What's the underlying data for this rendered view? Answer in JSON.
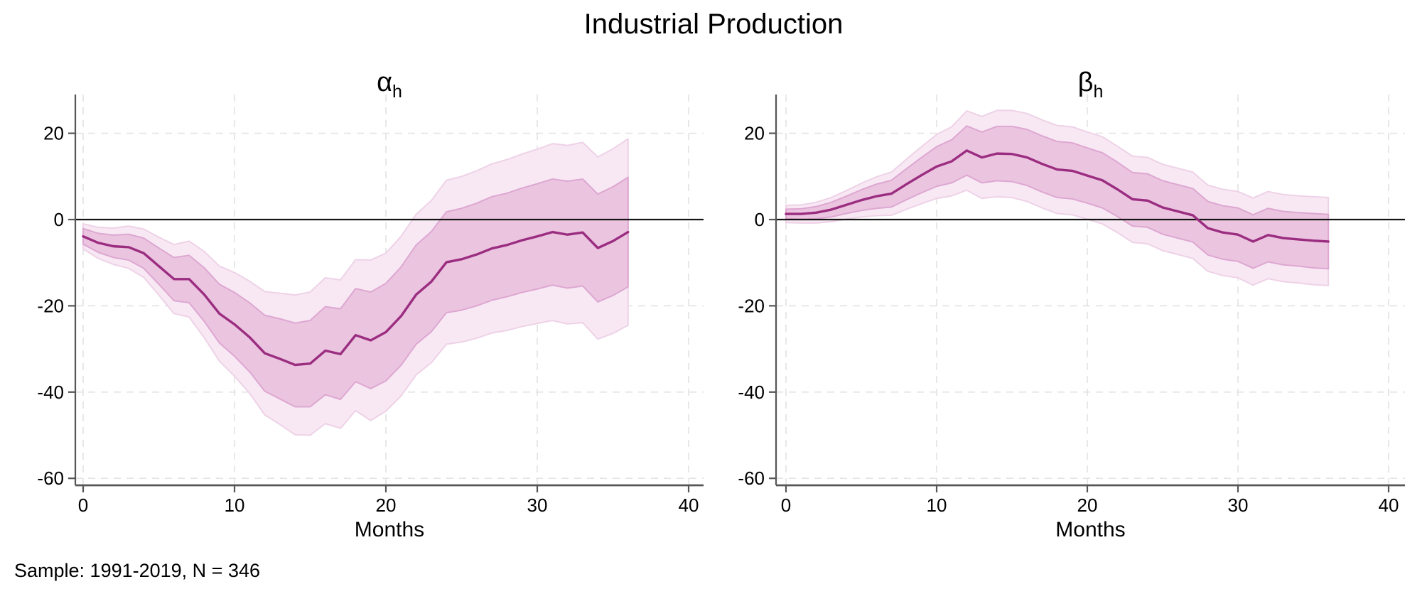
{
  "title": "Industrial Production",
  "note": "Sample: 1991-2019, N = 346",
  "chart_data": {
    "type": "area",
    "title": "Industrial Production",
    "xlabel": "Months",
    "x_ticks": [
      0,
      10,
      20,
      30,
      40
    ],
    "y_ticks": [
      20,
      0,
      -20,
      -40,
      -60
    ],
    "xlim": [
      0,
      40
    ],
    "ylim": [
      -62,
      29
    ],
    "zero_reference_line": 0,
    "grid": "dashed light-gray at all x and y ticks",
    "band_meaning": "inner and outer confidence bands around point estimate",
    "colors": {
      "mean_line": "#9b2d80",
      "inner_fill": "#ebc4e0",
      "inner_edge": "#dda7d1",
      "outer_fill": "#f8e8f4",
      "outer_edge": "#eed2e7",
      "grid": "#e3e3e3",
      "axis": "#565656",
      "zero_line": "#141414",
      "text": "#000000"
    },
    "months": [
      0,
      1,
      2,
      3,
      4,
      5,
      6,
      7,
      8,
      9,
      10,
      11,
      12,
      13,
      14,
      15,
      16,
      17,
      18,
      19,
      20,
      21,
      22,
      23,
      24,
      25,
      26,
      27,
      28,
      29,
      30,
      31,
      32,
      33,
      34,
      35,
      36
    ],
    "panels": [
      {
        "id": "alpha",
        "title_symbol": "α",
        "title_subscript": "h",
        "mean": [
          -3.9,
          -5.4,
          -6.2,
          -6.4,
          -7.8,
          -10.8,
          -13.8,
          -13.8,
          -17.4,
          -21.8,
          -24.3,
          -27.3,
          -31.0,
          -32.3,
          -33.7,
          -33.4,
          -30.4,
          -31.2,
          -26.8,
          -28.0,
          -26.1,
          -22.4,
          -17.4,
          -14.4,
          -9.9,
          -9.2,
          -8.1,
          -6.7,
          -5.9,
          -4.8,
          -3.9,
          -2.9,
          -3.5,
          -3.0,
          -6.6,
          -5.0,
          -2.9
        ],
        "inner_lo": [
          -5.7,
          -7.6,
          -8.8,
          -9.4,
          -11.3,
          -15.0,
          -18.8,
          -19.3,
          -23.6,
          -28.6,
          -31.7,
          -35.3,
          -39.8,
          -41.6,
          -43.4,
          -43.4,
          -40.6,
          -41.7,
          -37.6,
          -39.2,
          -37.4,
          -33.8,
          -28.9,
          -26.0,
          -21.6,
          -21.0,
          -20.0,
          -18.7,
          -17.9,
          -16.9,
          -16.1,
          -15.2,
          -15.9,
          -15.4,
          -19.1,
          -17.6,
          -15.6
        ],
        "inner_hi": [
          -2.1,
          -3.2,
          -3.6,
          -3.4,
          -4.3,
          -6.6,
          -8.8,
          -8.3,
          -11.2,
          -15.0,
          -16.9,
          -19.3,
          -22.2,
          -23.0,
          -24.0,
          -23.4,
          -20.2,
          -20.7,
          -16.0,
          -16.8,
          -14.8,
          -11.0,
          -5.9,
          -2.8,
          1.8,
          2.6,
          3.8,
          5.3,
          6.1,
          7.3,
          8.3,
          9.4,
          8.9,
          9.4,
          5.9,
          7.6,
          9.8
        ],
        "outer_lo": [
          -6.8,
          -9.0,
          -10.4,
          -11.3,
          -13.4,
          -17.5,
          -21.8,
          -22.6,
          -27.4,
          -32.8,
          -36.3,
          -40.3,
          -45.3,
          -47.5,
          -49.9,
          -50.0,
          -47.3,
          -48.4,
          -44.3,
          -46.6,
          -44.4,
          -40.9,
          -36.0,
          -33.2,
          -28.9,
          -28.4,
          -27.5,
          -26.3,
          -25.7,
          -24.8,
          -24.1,
          -23.4,
          -24.2,
          -23.9,
          -27.7,
          -26.4,
          -24.5
        ],
        "outer_hi": [
          -1.0,
          -1.8,
          -2.0,
          -1.5,
          -2.2,
          -4.1,
          -5.8,
          -5.0,
          -7.4,
          -10.8,
          -12.3,
          -14.3,
          -16.7,
          -17.1,
          -17.5,
          -16.8,
          -13.5,
          -14.0,
          -9.3,
          -9.4,
          -7.8,
          -3.9,
          1.2,
          4.4,
          9.1,
          10.0,
          11.3,
          12.9,
          13.9,
          15.2,
          16.3,
          17.6,
          17.2,
          17.9,
          14.5,
          16.4,
          18.7
        ]
      },
      {
        "id": "beta",
        "title_symbol": "β",
        "title_subscript": "h",
        "mean": [
          1.3,
          1.3,
          1.6,
          2.3,
          3.4,
          4.5,
          5.4,
          6.0,
          8.2,
          10.3,
          12.3,
          13.5,
          16.0,
          14.4,
          15.3,
          15.2,
          14.4,
          12.9,
          11.6,
          11.3,
          10.2,
          9.1,
          7.0,
          4.7,
          4.4,
          2.8,
          1.9,
          1.0,
          -2.0,
          -3.0,
          -3.5,
          -5.1,
          -3.6,
          -4.3,
          -4.6,
          -4.9,
          -5.1
        ],
        "inner_lo": [
          0.2,
          0.1,
          0.2,
          0.6,
          1.4,
          2.1,
          2.6,
          2.9,
          4.6,
          6.2,
          7.7,
          8.5,
          10.3,
          8.5,
          9.0,
          8.8,
          7.9,
          6.4,
          5.1,
          4.8,
          3.8,
          2.7,
          0.7,
          -1.5,
          -1.8,
          -3.4,
          -4.3,
          -5.2,
          -8.2,
          -9.2,
          -9.7,
          -11.3,
          -9.8,
          -10.5,
          -10.8,
          -11.2,
          -11.4
        ],
        "inner_hi": [
          2.4,
          2.5,
          3.0,
          4.0,
          5.4,
          6.9,
          8.2,
          9.1,
          11.8,
          14.4,
          16.9,
          18.5,
          21.7,
          20.3,
          21.6,
          21.6,
          20.9,
          19.4,
          18.1,
          17.8,
          16.6,
          15.5,
          13.3,
          10.9,
          10.6,
          9.0,
          8.1,
          7.2,
          4.2,
          3.2,
          2.7,
          1.1,
          2.6,
          1.9,
          1.6,
          1.4,
          1.2
        ],
        "outer_lo": [
          -0.7,
          -0.8,
          -0.8,
          -0.5,
          0.1,
          0.6,
          0.9,
          1.0,
          2.4,
          3.7,
          4.9,
          5.5,
          6.8,
          4.9,
          5.3,
          5.1,
          4.2,
          2.7,
          1.4,
          1.1,
          0.1,
          -1.0,
          -3.0,
          -5.3,
          -5.6,
          -7.2,
          -8.1,
          -9.0,
          -12.0,
          -13.0,
          -13.5,
          -15.2,
          -13.7,
          -14.4,
          -14.7,
          -15.1,
          -15.3
        ],
        "outer_hi": [
          3.3,
          3.4,
          4.0,
          5.1,
          6.7,
          8.4,
          9.9,
          11.0,
          14.0,
          16.9,
          19.7,
          21.5,
          25.2,
          23.9,
          25.3,
          25.3,
          24.6,
          23.1,
          21.8,
          21.5,
          20.3,
          19.2,
          17.0,
          14.7,
          14.4,
          12.8,
          11.9,
          11.0,
          8.0,
          7.0,
          6.5,
          5.0,
          6.5,
          5.8,
          5.5,
          5.3,
          5.1
        ]
      }
    ]
  }
}
